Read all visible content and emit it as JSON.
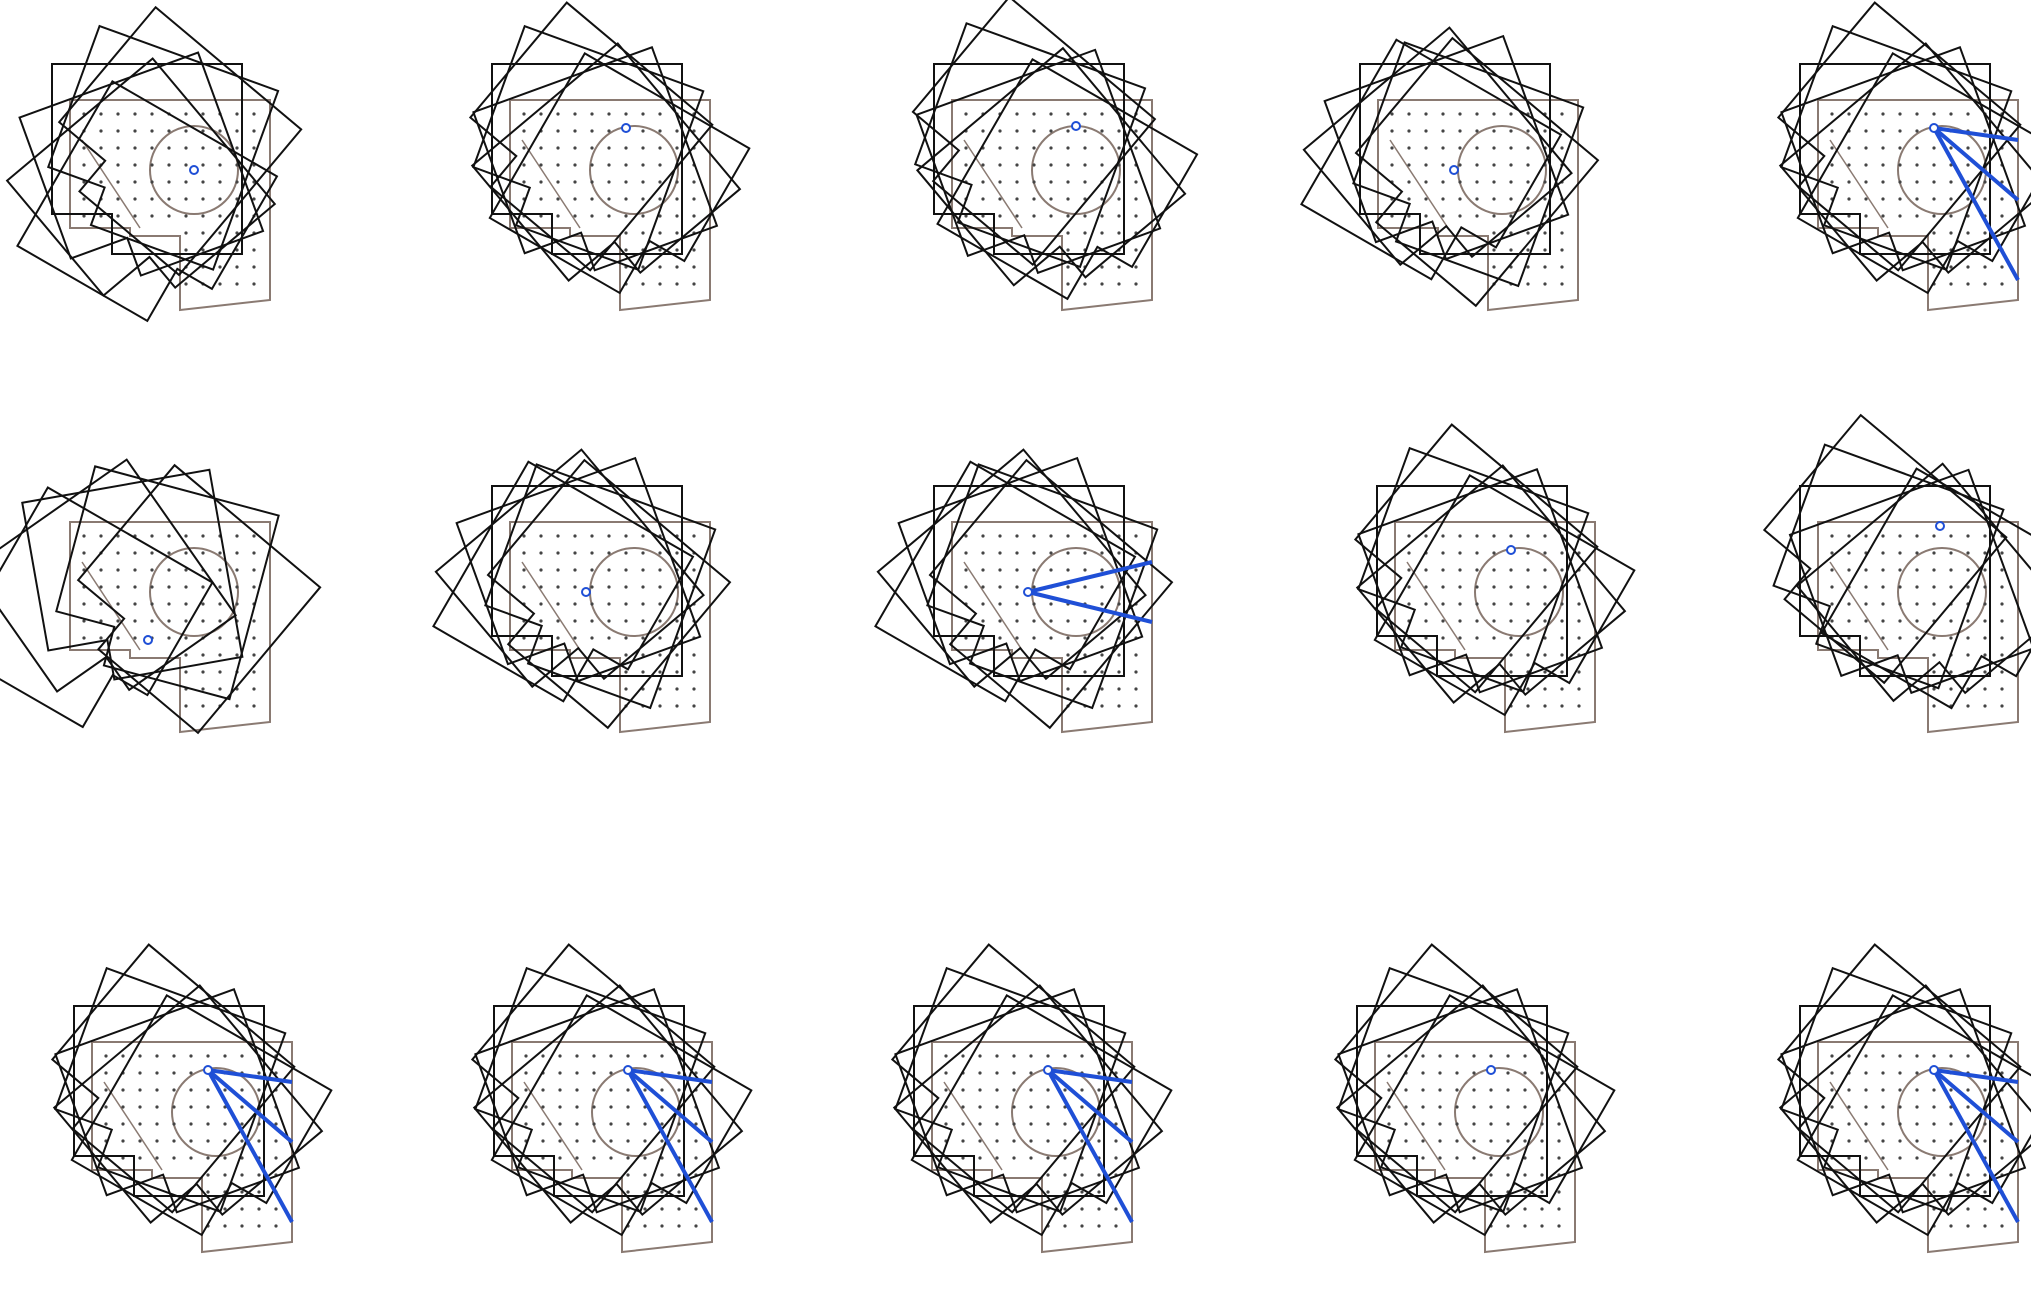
{
  "figure": {
    "description_visible_text": "",
    "panel_count": 15,
    "rows": 3,
    "columns": 5
  },
  "colors": {
    "background": "#ffffff",
    "outline_stroke": "#111111",
    "floorplan_stroke": "#8a7a72",
    "dot_fill": "#444444",
    "pivot_highlight": "#1f4fd6",
    "ray_highlight": "#1f4fd6"
  },
  "panels": [
    {
      "id": "r1c1",
      "rotations": 6,
      "pivot": "center-circle",
      "rays": 0
    },
    {
      "id": "r1c2",
      "rotations": 6,
      "pivot": "top-center",
      "rays": 0
    },
    {
      "id": "r1c3",
      "rotations": 6,
      "pivot": "top-right",
      "rays": 0
    },
    {
      "id": "r1c4",
      "rotations": 6,
      "pivot": "left-center",
      "rays": 0
    },
    {
      "id": "r1c5",
      "rotations": 6,
      "pivot": "top-center",
      "rays": 3
    },
    {
      "id": "r2c1",
      "rotations": 5,
      "pivot": "lower-left",
      "rays": 0
    },
    {
      "id": "r2c2",
      "rotations": 6,
      "pivot": "left-center",
      "rays": 0
    },
    {
      "id": "r2c3",
      "rotations": 6,
      "pivot": "left-center",
      "rays": 2
    },
    {
      "id": "r2c4",
      "rotations": 6,
      "pivot": "top-center",
      "rays": 0
    },
    {
      "id": "r2c5",
      "rotations": 6,
      "pivot": "top-right-corner",
      "rays": 0
    },
    {
      "id": "r3c1",
      "rotations": 6,
      "pivot": "top-center",
      "rays": 3
    },
    {
      "id": "r3c2",
      "rotations": 6,
      "pivot": "top-center",
      "rays": 3
    },
    {
      "id": "r3c3",
      "rotations": 6,
      "pivot": "top-center",
      "rays": 3
    },
    {
      "id": "r3c4",
      "rotations": 6,
      "pivot": "top-center",
      "rays": 0
    },
    {
      "id": "r3c5",
      "rotations": 6,
      "pivot": "top-center",
      "rays": 3
    }
  ]
}
